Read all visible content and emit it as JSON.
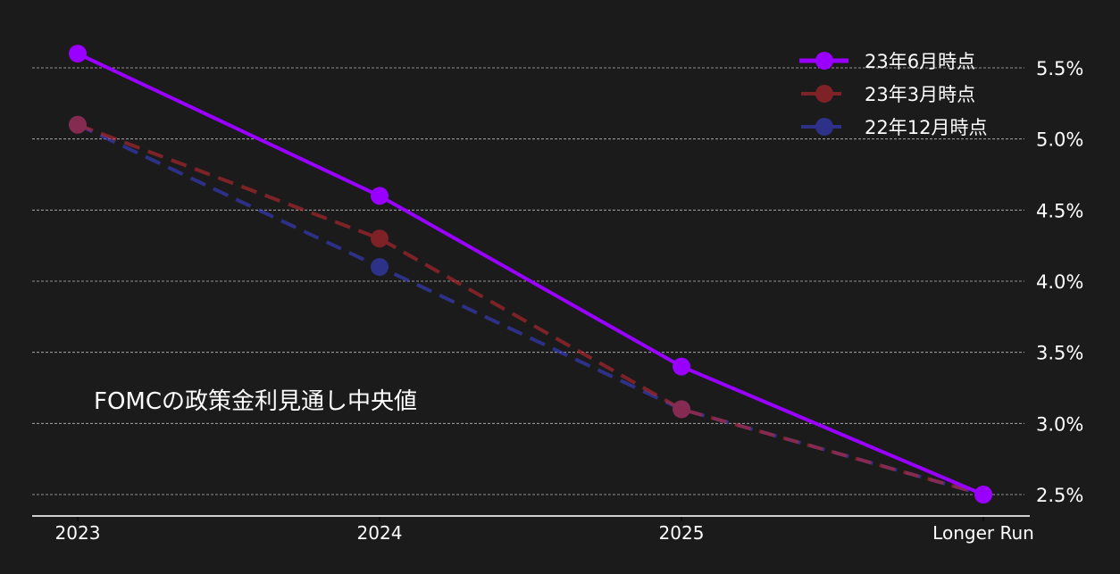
{
  "chart_data": {
    "type": "line",
    "title": "",
    "annotation": "FOMCの政策金利見通し中央値",
    "xlabel": "",
    "ylabel": "",
    "categories": [
      "2023",
      "2024",
      "2025",
      "Longer Run"
    ],
    "ylim": [
      2.35,
      5.85
    ],
    "yticks": [
      2.5,
      3.0,
      3.5,
      4.0,
      4.5,
      5.0,
      5.5
    ],
    "ytick_labels": [
      "2.5%",
      "3.0%",
      "3.5%",
      "4.0%",
      "4.5%",
      "5.0%",
      "5.5%"
    ],
    "y_axis_position": "right",
    "grid": "horizontal dashed",
    "legend_position": "upper right",
    "series": [
      {
        "name": "23年6月時点",
        "values": [
          5.6,
          4.6,
          3.4,
          2.5
        ],
        "color": "#9900ff",
        "style": "solid",
        "opacity": 1.0
      },
      {
        "name": "23年3月時点",
        "values": [
          5.1,
          4.3,
          3.1,
          2.5
        ],
        "color": "#c0282f",
        "style": "dashed",
        "opacity": 0.6
      },
      {
        "name": "22年12月時点",
        "values": [
          5.1,
          4.1,
          3.1,
          2.5
        ],
        "color": "#3a40d0",
        "style": "dashed",
        "opacity": 0.6
      }
    ]
  },
  "colors": {
    "background": "#1b1b1b",
    "grid": "#bbbbbb",
    "axis": "#d0d0d0",
    "text": "#ffffff"
  }
}
